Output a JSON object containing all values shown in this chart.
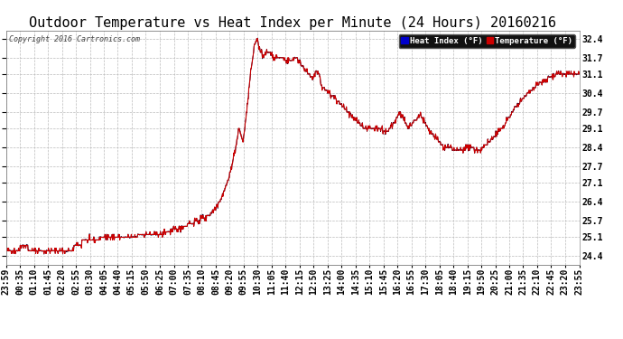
{
  "title": "Outdoor Temperature vs Heat Index per Minute (24 Hours) 20160216",
  "copyright": "Copyright 2016 Cartronics.com",
  "ylabel_right": [
    "24.4",
    "25.1",
    "25.7",
    "26.4",
    "27.1",
    "27.7",
    "28.4",
    "29.1",
    "29.7",
    "30.4",
    "31.1",
    "31.7",
    "32.4"
  ],
  "yticks": [
    24.4,
    25.1,
    25.7,
    26.4,
    27.1,
    27.7,
    28.4,
    29.1,
    29.7,
    30.4,
    31.1,
    31.7,
    32.4
  ],
  "ylim": [
    24.1,
    32.7
  ],
  "background_color": "#ffffff",
  "grid_color": "#bbbbbb",
  "line_color_temp": "#cc0000",
  "line_color_heat": "#000033",
  "legend_heat_bg": "#0000cc",
  "legend_temp_bg": "#cc0000",
  "title_fontsize": 11,
  "copyright_fontsize": 6,
  "tick_fontsize": 7,
  "x_labels": [
    "23:59",
    "00:35",
    "01:10",
    "01:45",
    "02:20",
    "02:55",
    "03:30",
    "04:05",
    "04:40",
    "05:15",
    "05:50",
    "06:25",
    "07:00",
    "07:35",
    "08:10",
    "08:45",
    "09:20",
    "09:55",
    "10:30",
    "11:05",
    "11:40",
    "12:15",
    "12:50",
    "13:25",
    "14:00",
    "14:35",
    "15:10",
    "15:45",
    "16:20",
    "16:55",
    "17:30",
    "18:05",
    "18:40",
    "19:15",
    "19:50",
    "20:25",
    "21:00",
    "21:35",
    "22:10",
    "22:45",
    "23:20",
    "23:55"
  ]
}
